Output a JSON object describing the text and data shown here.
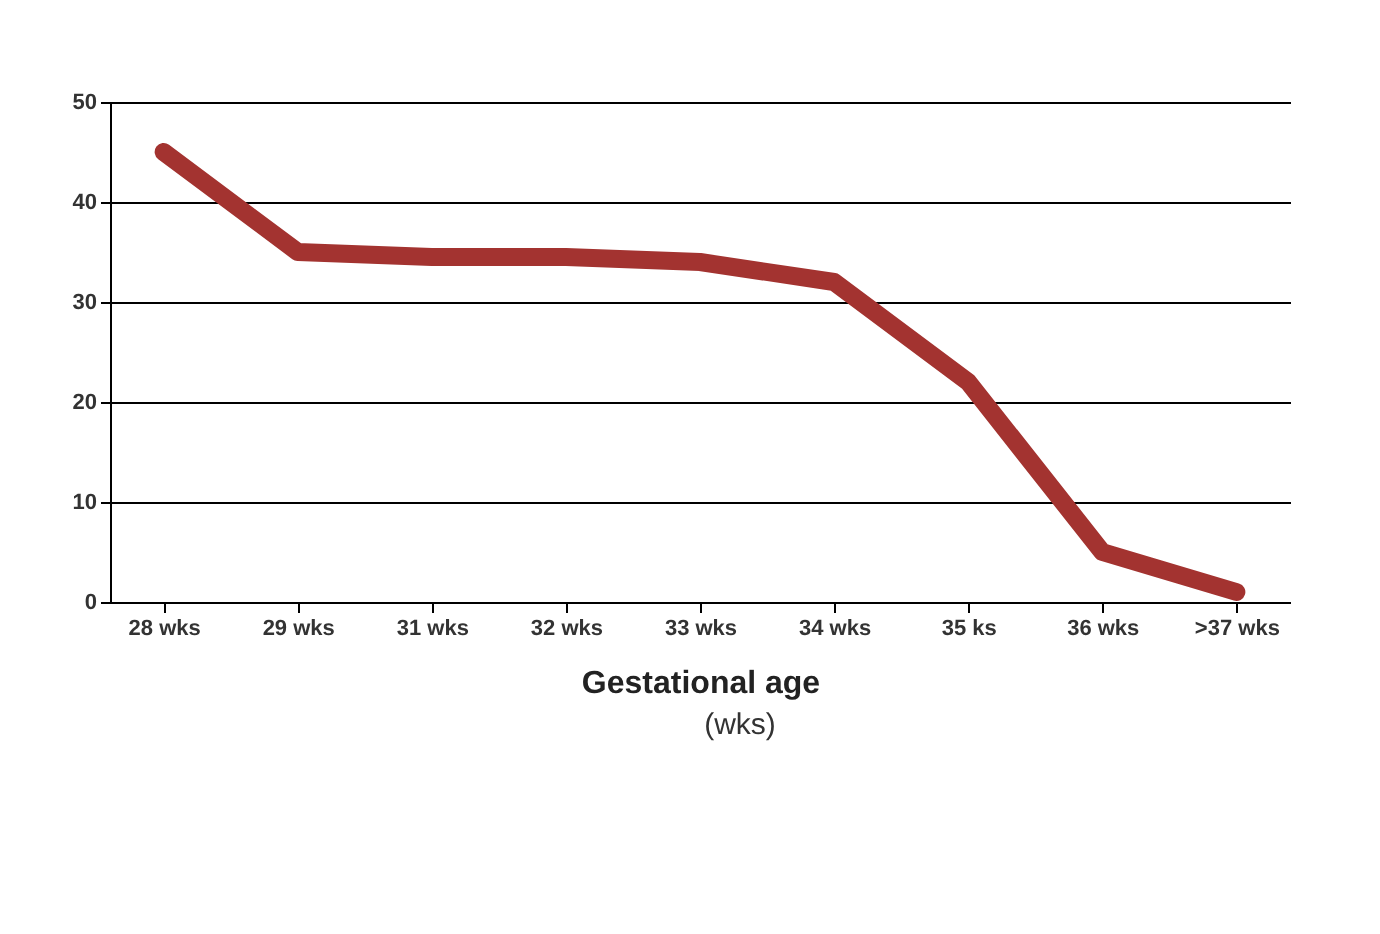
{
  "chart_data": {
    "type": "line",
    "xlabel": "Gestational age",
    "annotations": [
      "(wks)"
    ],
    "categories": [
      "28 wks",
      "29 wks",
      "31 wks",
      "32 wks",
      "33 wks",
      "34 wks",
      "35 ks",
      "36 wks",
      ">37 wks"
    ],
    "series": [
      {
        "color": "#a33330",
        "values": [
          45,
          35,
          34.5,
          34.5,
          34,
          32,
          22,
          5,
          1
        ]
      }
    ],
    "ylim": [
      0,
      50
    ],
    "yticks": [
      0,
      10,
      20,
      30,
      40,
      50
    ],
    "grid": "y",
    "legend": false,
    "line_style": "solid"
  }
}
